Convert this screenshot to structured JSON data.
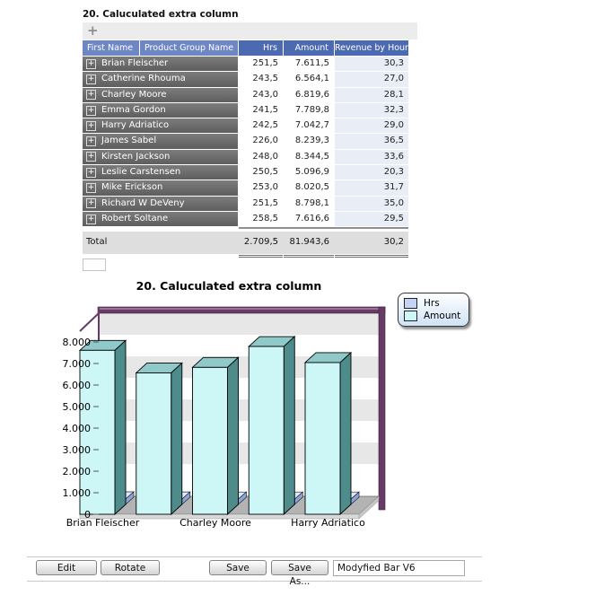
{
  "icons": {
    "expand": "+",
    "add": "+"
  },
  "table": {
    "title": "20. Caluculated extra column",
    "columns": [
      "First Name",
      "Product Group Name",
      "Hrs",
      "Amount",
      "Revenue by Hour"
    ],
    "rows": [
      {
        "name": "Brian Fleischer",
        "hrs": "251,5",
        "amount": "7.611,5",
        "revenue": "30,3"
      },
      {
        "name": "Catherine Rhouma",
        "hrs": "243,5",
        "amount": "6.564,1",
        "revenue": "27,0"
      },
      {
        "name": "Charley Moore",
        "hrs": "243,0",
        "amount": "6.819,6",
        "revenue": "28,1"
      },
      {
        "name": "Emma Gordon",
        "hrs": "241,5",
        "amount": "7.789,8",
        "revenue": "32,3"
      },
      {
        "name": "Harry Adriatico",
        "hrs": "242,5",
        "amount": "7.042,7",
        "revenue": "29,0"
      },
      {
        "name": "James Sabel",
        "hrs": "226,0",
        "amount": "8.239,3",
        "revenue": "36,5"
      },
      {
        "name": "Kirsten Jackson",
        "hrs": "248,0",
        "amount": "8.344,5",
        "revenue": "33,6"
      },
      {
        "name": "Leslie Carstensen",
        "hrs": "250,5",
        "amount": "5.096,9",
        "revenue": "20,3"
      },
      {
        "name": "Mike Erickson",
        "hrs": "253,0",
        "amount": "8.020,5",
        "revenue": "31,7"
      },
      {
        "name": "Richard W DeVeny",
        "hrs": "251,5",
        "amount": "8.798,1",
        "revenue": "35,0"
      },
      {
        "name": "Robert Soltane",
        "hrs": "258,5",
        "amount": "7.616,6",
        "revenue": "29,5"
      }
    ],
    "total": {
      "label": "Total",
      "hrs": "2.709,5",
      "amount": "81.943,6",
      "revenue": "30,2"
    }
  },
  "chart_data": {
    "type": "bar",
    "style": "3d",
    "title": "20. Caluculated extra column",
    "categories": [
      "Brian Fleischer",
      "Catherine Rhouma",
      "Charley Moore",
      "Emma Gordon",
      "Harry Adriatico"
    ],
    "x_label_indexes": [
      0,
      2,
      4
    ],
    "series": [
      {
        "name": "Hrs",
        "color": "#c3d4f5",
        "values": [
          251.5,
          243.5,
          243.0,
          241.5,
          242.5
        ]
      },
      {
        "name": "Amount",
        "color": "#cdf6f6",
        "values": [
          7611.5,
          6564.1,
          6819.6,
          7789.8,
          7042.7
        ]
      }
    ],
    "ylim": [
      0,
      8500
    ],
    "y_ticks": [
      0,
      1000,
      2000,
      3000,
      4000,
      5000,
      6000,
      7000,
      8000
    ],
    "y_tick_labels": [
      "0",
      "1.000",
      "2.000",
      "3.000",
      "4.000",
      "5.000",
      "6.000",
      "7.000",
      "8.000"
    ],
    "band_centers": [
      2000,
      4000,
      6000,
      8000
    ],
    "legend_position": "top-right",
    "grid": "banded"
  },
  "toolbar_bottom": {
    "edit_label": "Edit",
    "rotate_label": "Rotate",
    "save_label": "Save",
    "save_as_label": "Save As...",
    "name_value": "Modyfied Bar V6"
  },
  "colors": {
    "header_name_bg": "#6d86c4",
    "header_value_bg": "#4c6ab2",
    "row_name_bg": "#6b6b6b",
    "revenue_col_bg": "#e9eef6",
    "total_row_bg": "#dedede",
    "bar_amount_front": "#cdf6f6",
    "bar_amount_top": "#8fc9c9",
    "bar_amount_side": "#4e8c8c",
    "bar_hrs_front": "#c3d4f5",
    "bar_hrs_top": "#dde9fb",
    "bar_hrs_side": "#8aa6d8",
    "frame_purple": "#663c66",
    "frame_highlight": "#9c7399",
    "floor_gray": "#b3b3b3",
    "wall_band_gray": "#e7e7e7"
  }
}
